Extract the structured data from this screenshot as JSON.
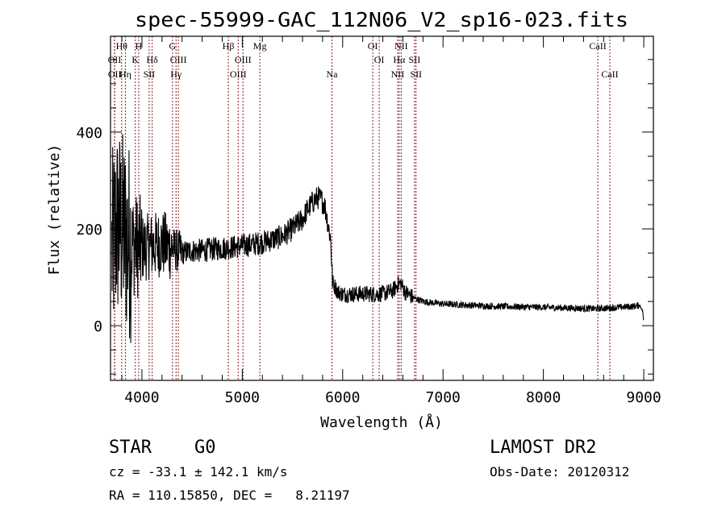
{
  "chart_data": {
    "type": "line",
    "title": "spec-55999-GAC_112N06_V2_sp16-023.fits",
    "xlabel": "Wavelength (Å)",
    "ylabel": "Flux (relative)",
    "xlim": [
      3687,
      9096
    ],
    "ylim": [
      -113,
      598
    ],
    "xticks": [
      "4000",
      "5000",
      "6000",
      "7000",
      "8000",
      "9000"
    ],
    "xtick_values": [
      4000,
      5000,
      6000,
      7000,
      8000,
      9000
    ],
    "yticks": [
      "0",
      "200",
      "400"
    ],
    "ytick_values": [
      0,
      200,
      400
    ],
    "grid": false,
    "series": [
      {
        "name": "spectrum",
        "color": "#000000",
        "x": [
          3700,
          3750,
          3800,
          3850,
          3900,
          3950,
          4000,
          4100,
          4200,
          4300,
          4400,
          4500,
          4600,
          4700,
          4800,
          4900,
          5000,
          5100,
          5200,
          5300,
          5400,
          5500,
          5600,
          5650,
          5700,
          5750,
          5780,
          5820,
          5850,
          5880,
          5900,
          5950,
          6000,
          6100,
          6200,
          6300,
          6400,
          6500,
          6550,
          6580,
          6620,
          6700,
          6800,
          7000,
          7500,
          8000,
          8500,
          8700,
          8900,
          8960,
          8990,
          9000
        ],
        "y": [
          150,
          210,
          200,
          180,
          170,
          165,
          160,
          165,
          170,
          160,
          150,
          155,
          155,
          158,
          160,
          162,
          165,
          168,
          172,
          178,
          185,
          200,
          220,
          240,
          255,
          265,
          262,
          250,
          215,
          180,
          90,
          70,
          65,
          65,
          66,
          65,
          66,
          72,
          85,
          88,
          70,
          58,
          50,
          45,
          40,
          38,
          35,
          37,
          40,
          42,
          30,
          5
        ]
      }
    ],
    "line_color": "#8b1a1a",
    "lines": [
      {
        "label": "Hθ",
        "wavelength": 3798,
        "row": 1
      },
      {
        "label": "H",
        "wavelength": 3968,
        "row": 1
      },
      {
        "label": "G",
        "wavelength": 4305,
        "row": 1
      },
      {
        "label": "Hβ",
        "wavelength": 4861,
        "row": 1
      },
      {
        "label": "Mg",
        "wavelength": 5175,
        "row": 1
      },
      {
        "label": "OI",
        "wavelength": 6300,
        "row": 1
      },
      {
        "label": "NII",
        "wavelength": 6583,
        "row": 1
      },
      {
        "label": "CaII",
        "wavelength": 8542,
        "row": 1
      },
      {
        "label": "OII",
        "wavelength": 3727,
        "row": 2
      },
      {
        "label": "K",
        "wavelength": 3934,
        "row": 2
      },
      {
        "label": "Hδ",
        "wavelength": 4102,
        "row": 2
      },
      {
        "label": "OIII",
        "wavelength": 4363,
        "row": 2
      },
      {
        "label": "OIII",
        "wavelength": 5007,
        "row": 2
      },
      {
        "label": "OI",
        "wavelength": 6364,
        "row": 2
      },
      {
        "label": "Hα",
        "wavelength": 6563,
        "row": 2
      },
      {
        "label": "SII",
        "wavelength": 6716,
        "row": 2
      },
      {
        "label": "OII",
        "wavelength": 3729,
        "row": 3
      },
      {
        "label": "Hη",
        "wavelength": 3835,
        "row": 3
      },
      {
        "label": "SII",
        "wavelength": 4072,
        "row": 3
      },
      {
        "label": "Hγ",
        "wavelength": 4340,
        "row": 3
      },
      {
        "label": "OIII",
        "wavelength": 4959,
        "row": 3
      },
      {
        "label": "Na",
        "wavelength": 5893,
        "row": 3
      },
      {
        "label": "NII",
        "wavelength": 6548,
        "row": 3
      },
      {
        "label": "SII",
        "wavelength": 6731,
        "row": 3
      },
      {
        "label": "CaII",
        "wavelength": 8662,
        "row": 3
      }
    ]
  },
  "info": {
    "class": "STAR    G0",
    "survey": "LAMOST DR2",
    "cz": "cz = -33.1 ± 142.1 km/s",
    "obs_date": "Obs-Date: 20120312",
    "coords": "RA = 110.15850, DEC =   8.21197"
  }
}
